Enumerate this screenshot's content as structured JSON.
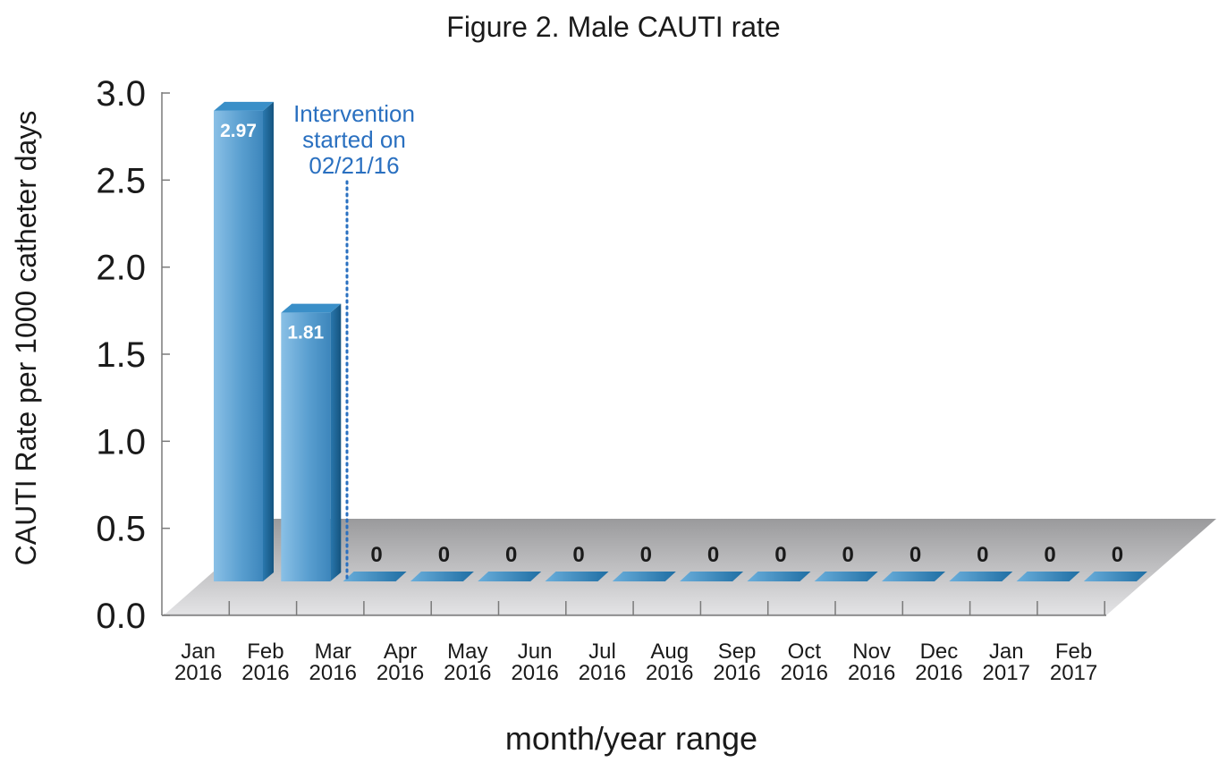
{
  "chart_data": {
    "type": "bar",
    "title": "Figure 2. Male CAUTI rate",
    "xlabel": "month/year range",
    "ylabel": "CAUTI Rate per 1000 catheter days",
    "ylim": [
      0,
      3.0
    ],
    "yticks": [
      "0.0",
      "0.5",
      "1.0",
      "1.5",
      "2.0",
      "2.5",
      "3.0"
    ],
    "categories": [
      [
        "Jan",
        "2016"
      ],
      [
        "Feb",
        "2016"
      ],
      [
        "Mar",
        "2016"
      ],
      [
        "Apr",
        "2016"
      ],
      [
        "May",
        "2016"
      ],
      [
        "Jun",
        "2016"
      ],
      [
        "Jul",
        "2016"
      ],
      [
        "Aug",
        "2016"
      ],
      [
        "Sep",
        "2016"
      ],
      [
        "Oct",
        "2016"
      ],
      [
        "Nov",
        "2016"
      ],
      [
        "Dec",
        "2016"
      ],
      [
        "Jan",
        "2017"
      ],
      [
        "Feb",
        "2017"
      ]
    ],
    "values": [
      2.97,
      1.81,
      0,
      0,
      0,
      0,
      0,
      0,
      0,
      0,
      0,
      0,
      0,
      0
    ],
    "data_labels": [
      "2.97",
      "1.81",
      "0",
      "0",
      "0",
      "0",
      "0",
      "0",
      "0",
      "0",
      "0",
      "0",
      "0",
      "0"
    ],
    "annotation": {
      "lines": [
        "Intervention",
        "started on",
        "02/21/16"
      ],
      "style": "dotted vertical line"
    },
    "grid": false,
    "style": "3d",
    "colors": {
      "bar_front": "#5a9fd0",
      "bar_side": "#1e6a9c",
      "bar_top": "#3a8fc8",
      "floor": "#c9c9cb",
      "annotation": "#2a70c0",
      "text": "#1a1a1a",
      "axis": "#7a7a7a"
    }
  }
}
